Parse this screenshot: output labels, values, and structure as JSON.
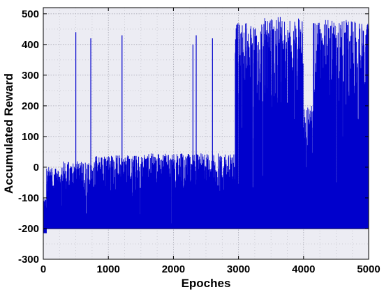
{
  "chart_data": {
    "type": "line",
    "title": "",
    "xlabel": "Epoches",
    "ylabel": "Accumulated Reward",
    "xlim": [
      0,
      5000
    ],
    "ylim": [
      -300,
      520
    ],
    "xticks": [
      0,
      1000,
      2000,
      3000,
      4000,
      5000
    ],
    "yticks": [
      -300,
      -200,
      -100,
      0,
      100,
      200,
      300,
      400,
      500
    ],
    "grid": true,
    "background_color": "#ececf3",
    "series_color": "#0000cc",
    "series": [
      {
        "phases": [
          {
            "x_start": 0,
            "x_end": 50,
            "low": -215,
            "high": -100
          },
          {
            "x_start": 50,
            "x_end": 300,
            "low": -200,
            "high": 0
          },
          {
            "x_start": 300,
            "x_end": 800,
            "low": -200,
            "high": 20
          },
          {
            "x_start": 800,
            "x_end": 1500,
            "low": -200,
            "high": 40
          },
          {
            "x_start": 1500,
            "x_end": 2950,
            "low": -200,
            "high": 45
          },
          {
            "x_start": 2950,
            "x_end": 3350,
            "low": -200,
            "high": 470
          },
          {
            "x_start": 3350,
            "x_end": 4000,
            "low": -200,
            "high": 490
          },
          {
            "x_start": 4000,
            "x_end": 4150,
            "low": -200,
            "high": 200
          },
          {
            "x_start": 4150,
            "x_end": 5000,
            "low": -200,
            "high": 480
          }
        ],
        "spikes": [
          {
            "x": 500,
            "y": 440
          },
          {
            "x": 730,
            "y": 420
          },
          {
            "x": 1210,
            "y": 430
          },
          {
            "x": 2300,
            "y": 400
          },
          {
            "x": 2350,
            "y": 430
          },
          {
            "x": 2600,
            "y": 420
          }
        ]
      }
    ]
  }
}
